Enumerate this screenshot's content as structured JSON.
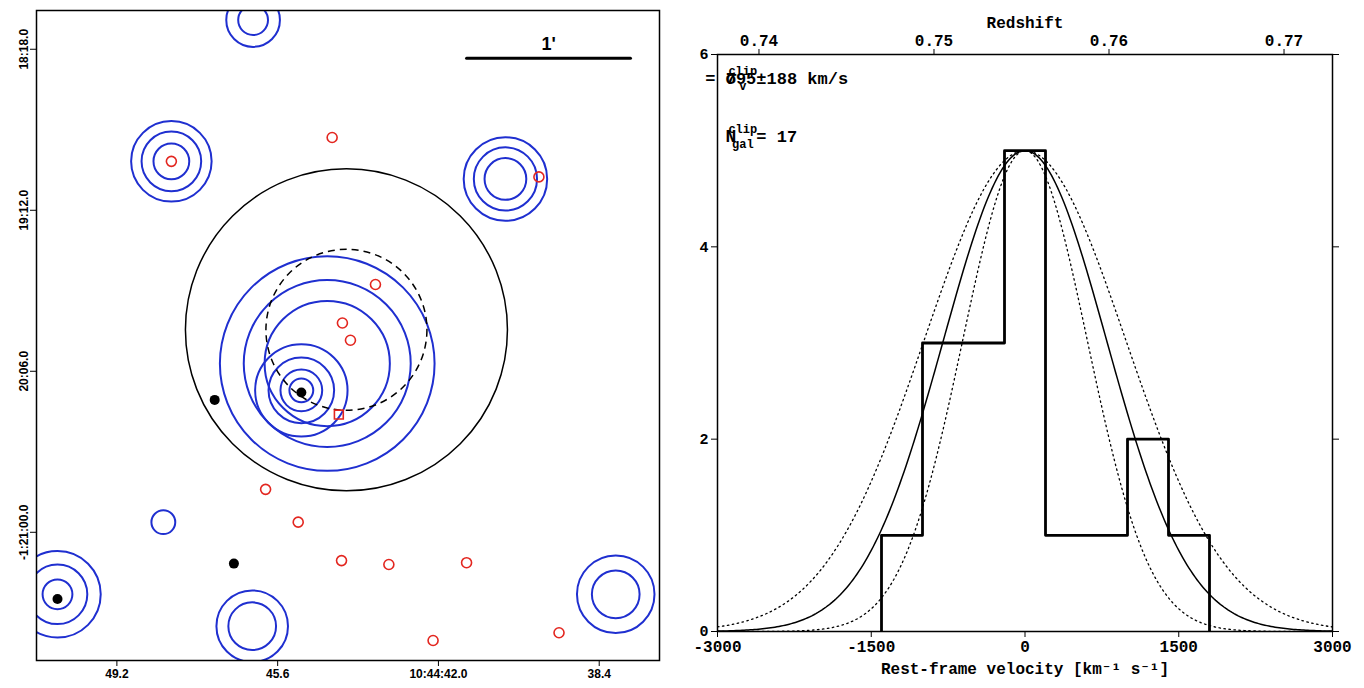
{
  "chart_data": [
    {
      "type": "sky_map",
      "xlim": [
        51.0,
        37.05
      ],
      "xticks": [
        49.2,
        45.6,
        {
          "value": 42.0,
          "label": "10:44:42.0"
        },
        38.4
      ],
      "ylim": [
        1085,
        1303
      ],
      "yticks": [
        {
          "value": 1098,
          "label": "18:18.0"
        },
        {
          "value": 1152,
          "label": "19:12.0"
        },
        {
          "value": 1206,
          "label": "20:06.0"
        },
        {
          "value": 1260,
          "label": "-1:21:00.0"
        }
      ],
      "members": {
        "ra": [
          44.38,
          47.98,
          39.75,
          43.41,
          43.97,
          44.15,
          45.87,
          45.14,
          44.17,
          43.11,
          41.37,
          42.12,
          39.3
        ],
        "dec": [
          1127.6,
          1135.6,
          1140.8,
          1176.9,
          1195.6,
          1189.8,
          1245.6,
          1256.6,
          1269.5,
          1270.8,
          1270.2,
          1296.3,
          1293.7
        ],
        "marker": "circle",
        "color": "#e3261f"
      },
      "square_members": {
        "ra": [
          44.23
        ],
        "dec": [
          1220.5
        ],
        "marker": "square",
        "color": "#e3261f"
      },
      "bright_sources": {
        "ra": [
          47.01,
          45.07,
          50.53,
          46.58
        ],
        "dec": [
          1215.6,
          1213.1,
          1282.4,
          1270.5
        ],
        "color": "#000000"
      },
      "contours": {
        "color": "#1f2fd0",
        "rings": [
          {
            "ra": 45.07,
            "dec": 1212.4,
            "radii": [
              4,
              7,
              11,
              15.5
            ]
          },
          {
            "ra": 44.49,
            "dec": 1203.4,
            "radii": [
              21,
              28,
              36
            ]
          },
          {
            "ra": 47.98,
            "dec": 1135.6,
            "radii": [
              6,
              10,
              13.5
            ]
          },
          {
            "ra": 40.5,
            "dec": 1141.5,
            "radii": [
              7,
              10.6,
              14
            ]
          },
          {
            "ra": 38.03,
            "dec": 1280.8,
            "radii": [
              8,
              13
            ]
          },
          {
            "ra": 46.15,
            "dec": 1088.2,
            "radii": [
              5,
              9
            ]
          },
          {
            "ra": 50.53,
            "dec": 1280.8,
            "radii": [
              5,
              10,
              14.5
            ]
          },
          {
            "ra": 46.17,
            "dec": 1291.5,
            "radii": [
              8,
              12
            ]
          },
          {
            "ra": 48.16,
            "dec": 1256.6,
            "radii": [
              4
            ]
          }
        ]
      },
      "apertures": [
        {
          "ra": 44.06,
          "dec": 1192.1,
          "radius": 54,
          "line_style": "solid"
        },
        {
          "ra": 44.06,
          "dec": 1192.1,
          "radius": 27,
          "line_style": "dashed"
        }
      ],
      "scale_bar": {
        "label": "1'",
        "ra": [
          41.37,
          37.7
        ],
        "dec": 1101
      }
    },
    {
      "type": "histogram",
      "bins": [
        -1400,
        -1000,
        -600,
        -200,
        200,
        600,
        1000,
        1400,
        1800
      ],
      "counts": [
        1,
        3,
        3,
        5,
        1,
        1,
        2,
        1
      ],
      "color": "#000000",
      "xlim": [
        -3000,
        3000
      ],
      "xticks": [
        -3000,
        -1500,
        0,
        1500,
        3000
      ],
      "ylim": [
        0,
        6
      ],
      "yticks": [
        0,
        2,
        4,
        6
      ],
      "x_label": "Rest-frame velocity [km⁻¹ s⁻¹]",
      "x2_label": "Redshift",
      "x2lim": [
        0.73763,
        0.77277
      ],
      "x2ticks": [
        0.74,
        0.75,
        0.76,
        0.77
      ],
      "fit": {
        "sigma": 795,
        "sigma_err": 188,
        "amplitude": 5
      },
      "annotations": [
        {
          "symbol": "σ",
          "sub": "v",
          "sup": "clip",
          "text": " = 795±188 km/s"
        },
        {
          "symbol": "N",
          "sub": "gal",
          "sup": "clip",
          "text": " = 17"
        }
      ]
    }
  ]
}
